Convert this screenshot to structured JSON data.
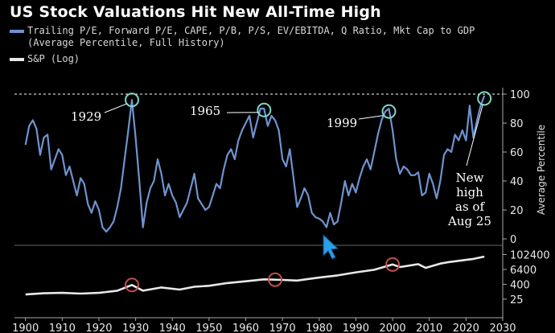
{
  "chart_data": {
    "type": "line",
    "title": "US Stock Valuations Hit New All-Time High",
    "legend_placement": "top-left",
    "legend": [
      {
        "label": "Trailing P/E, Forward P/E, CAPE, P/B, P/S, EV/EBITDA, Q Ratio, Mkt Cap to GDP",
        "color": "#6f93cf"
      },
      {
        "label": "(Average Percentile, Full History)",
        "color": ""
      },
      {
        "label": "S&P (Log)",
        "color": "#e8e8e8"
      }
    ],
    "ylabel_top": "Average Percentile",
    "x_ticks": [
      "1900",
      "1910",
      "1920",
      "1930",
      "1940",
      "1950",
      "1960",
      "1970",
      "1980",
      "1990",
      "2000",
      "2010",
      "2020",
      "2030"
    ],
    "xlim": [
      1897,
      2030
    ],
    "top_panel": {
      "ylim": [
        0,
        100
      ],
      "y_ticks": [
        "100",
        "80",
        "60",
        "40",
        "20",
        "0"
      ],
      "reference_line": 100,
      "series": {
        "color": "#6f93cf",
        "x": [
          1900,
          1901,
          1902,
          1903,
          1904,
          1905,
          1906,
          1907,
          1908,
          1909,
          1910,
          1911,
          1912,
          1913,
          1914,
          1915,
          1916,
          1917,
          1918,
          1919,
          1920,
          1921,
          1922,
          1923,
          1924,
          1925,
          1926,
          1927,
          1928,
          1929,
          1930,
          1931,
          1932,
          1933,
          1934,
          1935,
          1936,
          1937,
          1938,
          1939,
          1940,
          1941,
          1942,
          1943,
          1944,
          1945,
          1946,
          1947,
          1948,
          1949,
          1950,
          1951,
          1952,
          1953,
          1954,
          1955,
          1956,
          1957,
          1958,
          1959,
          1960,
          1961,
          1962,
          1963,
          1964,
          1965,
          1966,
          1967,
          1968,
          1969,
          1970,
          1971,
          1972,
          1973,
          1974,
          1975,
          1976,
          1977,
          1978,
          1979,
          1980,
          1981,
          1982,
          1983,
          1984,
          1985,
          1986,
          1987,
          1988,
          1989,
          1990,
          1991,
          1992,
          1993,
          1994,
          1995,
          1996,
          1997,
          1998,
          1999,
          2000,
          2001,
          2002,
          2003,
          2004,
          2005,
          2006,
          2007,
          2008,
          2009,
          2010,
          2011,
          2012,
          2013,
          2014,
          2015,
          2016,
          2017,
          2018,
          2019,
          2020,
          2021,
          2022,
          2023,
          2024,
          2025
        ],
        "values": [
          65,
          78,
          82,
          76,
          58,
          70,
          72,
          48,
          55,
          62,
          58,
          44,
          50,
          40,
          30,
          42,
          38,
          24,
          18,
          26,
          20,
          8,
          5,
          8,
          12,
          22,
          35,
          55,
          75,
          96,
          70,
          40,
          8,
          25,
          35,
          40,
          55,
          45,
          30,
          38,
          30,
          25,
          15,
          20,
          25,
          35,
          45,
          28,
          24,
          20,
          22,
          30,
          38,
          35,
          48,
          58,
          62,
          55,
          68,
          75,
          80,
          85,
          70,
          80,
          90,
          90,
          78,
          85,
          82,
          75,
          55,
          50,
          62,
          42,
          22,
          28,
          35,
          30,
          18,
          15,
          14,
          12,
          8,
          18,
          10,
          12,
          25,
          40,
          30,
          38,
          32,
          42,
          50,
          55,
          48,
          60,
          72,
          82,
          88,
          90,
          75,
          55,
          45,
          50,
          48,
          44,
          44,
          46,
          30,
          32,
          45,
          38,
          28,
          40,
          58,
          62,
          60,
          72,
          68,
          75,
          68,
          92,
          70,
          82,
          92,
          99
        ]
      },
      "annotations": [
        {
          "label": "1929",
          "x": 1929,
          "y": 96
        },
        {
          "label": "1965",
          "x": 1965,
          "y": 89
        },
        {
          "label": "1999",
          "x": 1999,
          "y": 90
        },
        {
          "label": "New",
          "x": 2025,
          "y": 99
        },
        {
          "label": "high",
          "x": 2025,
          "y": 99
        },
        {
          "label": "as of",
          "x": 2025,
          "y": 99
        },
        {
          "label": "Aug 25",
          "x": 2025,
          "y": 99
        }
      ]
    },
    "bottom_panel": {
      "scale": "log",
      "ylim": [
        10,
        200000
      ],
      "y_ticks": [
        "102400",
        "6400",
        "400",
        "25"
      ],
      "series": {
        "color": "#e8e8e8",
        "x": [
          1900,
          1905,
          1910,
          1915,
          1920,
          1925,
          1929,
          1932,
          1937,
          1942,
          1946,
          1950,
          1955,
          1960,
          1965,
          1970,
          1974,
          1980,
          1985,
          1990,
          1995,
          2000,
          2002,
          2007,
          2009,
          2013,
          2015,
          2020,
          2022,
          2025
        ],
        "values": [
          60,
          75,
          80,
          70,
          80,
          120,
          350,
          120,
          220,
          150,
          250,
          300,
          500,
          700,
          1000,
          900,
          800,
          1400,
          2100,
          3700,
          6000,
          16000,
          10000,
          17000,
          8500,
          19000,
          24000,
          38000,
          45000,
          70000
        ]
      },
      "highlights": [
        1929,
        1968,
        2000
      ]
    }
  }
}
